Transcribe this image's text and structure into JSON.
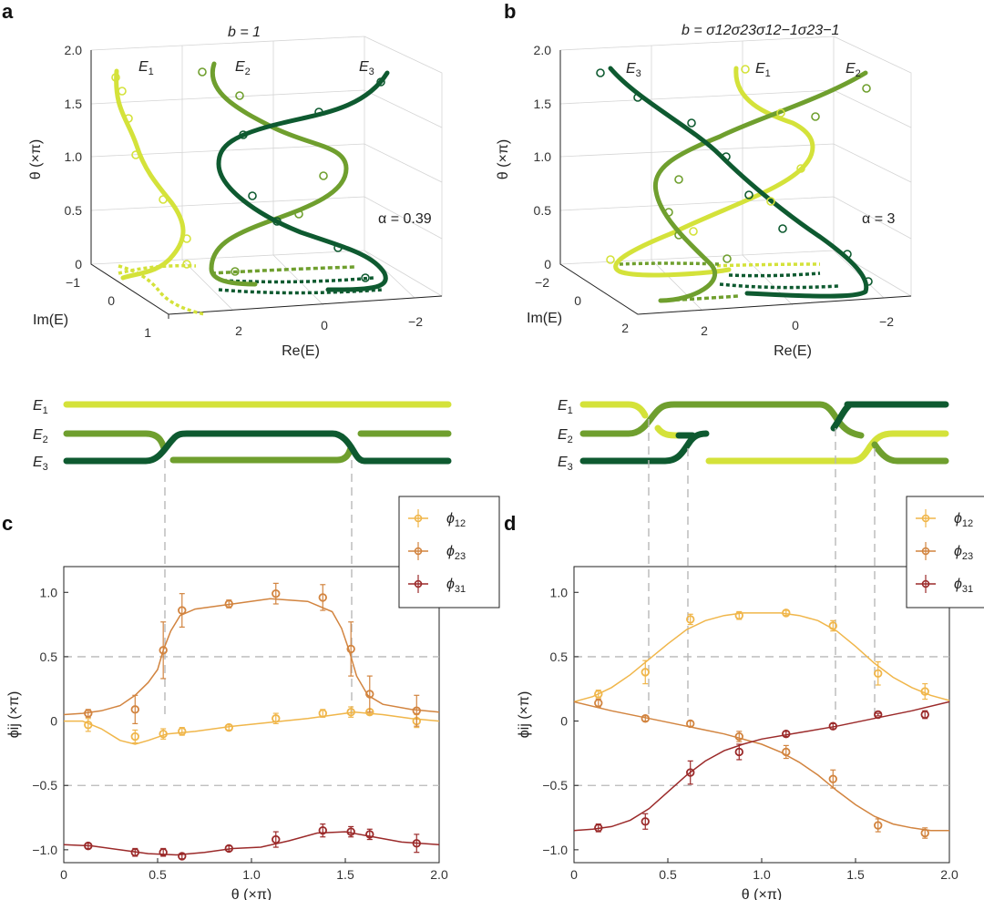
{
  "colors": {
    "E1": "#d4e23a",
    "E2": "#6f9f2e",
    "E3": "#0e5a30",
    "phi12": "#f0b64a",
    "phi23": "#d2843f",
    "phi31": "#9b2a2a"
  },
  "panels": {
    "a": {
      "letter": "a",
      "title": "b = 1",
      "alpha": "α = 0.39",
      "labels": [
        "E",
        "E",
        "E"
      ],
      "subs": [
        "1",
        "2",
        "3"
      ]
    },
    "b": {
      "letter": "b",
      "title_prefix": "b = ",
      "title_braid": "σ12σ23σ12−1σ23−1",
      "alpha": "α = 3",
      "labels": [
        "E",
        "E",
        "E"
      ],
      "subs": [
        "3",
        "1",
        "2"
      ]
    },
    "c": {
      "letter": "c"
    },
    "d": {
      "letter": "d"
    }
  },
  "axes3d": {
    "theta_label": "θ (×π)",
    "im_label": "Im(E)",
    "re_label": "Re(E)",
    "theta_ticks": [
      "0",
      "0.5",
      "1.0",
      "1.5",
      "2.0"
    ],
    "re_ticks": [
      "2",
      "0",
      "−2"
    ],
    "im_ticks_a": [
      "−1",
      "0",
      "1"
    ],
    "im_ticks_b": [
      "−2",
      "0",
      "2"
    ]
  },
  "braid_labels": {
    "E": "E",
    "subs": [
      "1",
      "2",
      "3"
    ]
  },
  "legend": {
    "items": [
      {
        "name": "ϕ",
        "sub": "12",
        "color": "#f0b64a"
      },
      {
        "name": "ϕ",
        "sub": "23",
        "color": "#d2843f"
      },
      {
        "name": "ϕ",
        "sub": "31",
        "color": "#9b2a2a"
      }
    ]
  },
  "chart_data": [
    {
      "panel": "c",
      "type": "line",
      "xlabel": "θ (×π)",
      "ylabel": "ϕij (×π)",
      "xlim": [
        0,
        2.0
      ],
      "ylim": [
        -1.1,
        1.2
      ],
      "xticks": [
        0,
        0.5,
        1.0,
        1.5,
        2.0
      ],
      "xtick_labels": [
        "0",
        "0.5",
        "1.0",
        "1.5",
        "2.0"
      ],
      "yticks": [
        -1.0,
        -0.5,
        0,
        0.5,
        1.0
      ],
      "ytick_labels": [
        "−1.0",
        "−0.5",
        "0",
        "0.5",
        "1.0"
      ],
      "hlines": [
        0.5,
        -0.5
      ],
      "series": [
        {
          "name": "ϕ12",
          "color": "#f0b64a",
          "curve_x": [
            0,
            0.1,
            0.2,
            0.3,
            0.38,
            0.45,
            0.55,
            0.7,
            0.9,
            1.1,
            1.3,
            1.45,
            1.55,
            1.7,
            1.85,
            2.0
          ],
          "curve_y": [
            0.0,
            0.0,
            -0.06,
            -0.15,
            -0.18,
            -0.15,
            -0.1,
            -0.08,
            -0.04,
            -0.01,
            0.02,
            0.05,
            0.07,
            0.05,
            0.02,
            0.0
          ],
          "points_x": [
            0.13,
            0.38,
            0.53,
            0.63,
            0.88,
            1.13,
            1.38,
            1.53,
            1.63,
            1.88
          ],
          "points_y": [
            -0.03,
            -0.12,
            -0.1,
            -0.08,
            -0.05,
            0.02,
            0.06,
            0.07,
            0.07,
            0.0
          ],
          "err": [
            0.05,
            0.05,
            0.04,
            0.03,
            0.02,
            0.04,
            0.03,
            0.04,
            0.02,
            0.05
          ]
        },
        {
          "name": "ϕ23",
          "color": "#d2843f",
          "curve_x": [
            0,
            0.1,
            0.2,
            0.3,
            0.38,
            0.45,
            0.5,
            0.53,
            0.57,
            0.62,
            0.7,
            0.9,
            1.1,
            1.3,
            1.43,
            1.48,
            1.52,
            1.56,
            1.62,
            1.7,
            1.85,
            2.0
          ],
          "curve_y": [
            0.05,
            0.06,
            0.08,
            0.12,
            0.2,
            0.3,
            0.4,
            0.55,
            0.7,
            0.82,
            0.87,
            0.91,
            0.95,
            0.93,
            0.85,
            0.72,
            0.55,
            0.35,
            0.2,
            0.13,
            0.09,
            0.07
          ],
          "points_x": [
            0.13,
            0.38,
            0.53,
            0.63,
            0.88,
            1.13,
            1.38,
            1.53,
            1.63,
            1.88
          ],
          "points_y": [
            0.06,
            0.09,
            0.55,
            0.86,
            0.91,
            0.99,
            0.96,
            0.56,
            0.21,
            0.08
          ],
          "err": [
            0.03,
            0.11,
            0.22,
            0.13,
            0.03,
            0.08,
            0.1,
            0.21,
            0.14,
            0.12
          ]
        },
        {
          "name": "ϕ31",
          "color": "#9b2a2a",
          "curve_x": [
            0,
            0.15,
            0.3,
            0.45,
            0.6,
            0.75,
            0.9,
            1.05,
            1.2,
            1.35,
            1.5,
            1.65,
            1.8,
            2.0
          ],
          "curve_y": [
            -0.96,
            -0.97,
            -1.0,
            -1.03,
            -1.04,
            -1.02,
            -0.99,
            -0.98,
            -0.93,
            -0.87,
            -0.86,
            -0.9,
            -0.94,
            -0.96
          ],
          "points_x": [
            0.13,
            0.38,
            0.53,
            0.63,
            0.88,
            1.13,
            1.38,
            1.53,
            1.63,
            1.88
          ],
          "points_y": [
            -0.97,
            -1.02,
            -1.02,
            -1.05,
            -0.99,
            -0.92,
            -0.85,
            -0.86,
            -0.88,
            -0.95
          ],
          "err": [
            0.02,
            0.03,
            0.03,
            0.02,
            0.02,
            0.06,
            0.05,
            0.04,
            0.04,
            0.07
          ]
        }
      ]
    },
    {
      "panel": "d",
      "type": "line",
      "xlabel": "θ (×π)",
      "ylabel": "ϕij (×π)",
      "xlim": [
        0,
        2.0
      ],
      "ylim": [
        -1.1,
        1.2
      ],
      "xticks": [
        0,
        0.5,
        1.0,
        1.5,
        2.0
      ],
      "xtick_labels": [
        "0",
        "0.5",
        "1.0",
        "1.5",
        "2.0"
      ],
      "yticks": [
        -1.0,
        -0.5,
        0,
        0.5,
        1.0
      ],
      "ytick_labels": [
        "−1.0",
        "−0.5",
        "0",
        "0.5",
        "1.0"
      ],
      "hlines": [
        0.5,
        -0.5
      ],
      "series": [
        {
          "name": "ϕ12",
          "color": "#f0b64a",
          "curve_x": [
            0,
            0.1,
            0.2,
            0.3,
            0.4,
            0.5,
            0.6,
            0.7,
            0.8,
            0.9,
            1.0,
            1.1,
            1.2,
            1.3,
            1.4,
            1.5,
            1.6,
            1.7,
            1.8,
            1.9,
            2.0
          ],
          "curve_y": [
            0.15,
            0.19,
            0.26,
            0.36,
            0.48,
            0.6,
            0.71,
            0.78,
            0.82,
            0.84,
            0.84,
            0.84,
            0.82,
            0.78,
            0.7,
            0.58,
            0.45,
            0.34,
            0.26,
            0.2,
            0.16
          ],
          "points_x": [
            0.13,
            0.38,
            0.62,
            0.88,
            1.13,
            1.38,
            1.62,
            1.87
          ],
          "points_y": [
            0.21,
            0.38,
            0.79,
            0.82,
            0.84,
            0.74,
            0.37,
            0.23
          ],
          "err": [
            0.03,
            0.09,
            0.04,
            0.03,
            0.02,
            0.04,
            0.09,
            0.06
          ]
        },
        {
          "name": "ϕ23",
          "color": "#d2843f",
          "curve_x": [
            0,
            0.2,
            0.4,
            0.6,
            0.8,
            1.0,
            1.1,
            1.2,
            1.3,
            1.4,
            1.5,
            1.6,
            1.7,
            1.8,
            1.9,
            2.0
          ],
          "curve_y": [
            0.15,
            0.08,
            0.02,
            -0.04,
            -0.1,
            -0.18,
            -0.24,
            -0.32,
            -0.42,
            -0.54,
            -0.65,
            -0.74,
            -0.8,
            -0.83,
            -0.85,
            -0.85
          ],
          "points_x": [
            0.13,
            0.38,
            0.62,
            0.88,
            1.13,
            1.38,
            1.62,
            1.87
          ],
          "points_y": [
            0.14,
            0.02,
            -0.02,
            -0.12,
            -0.24,
            -0.45,
            -0.81,
            -0.87
          ],
          "err": [
            0.03,
            0.02,
            0.02,
            0.04,
            0.05,
            0.07,
            0.05,
            0.04
          ]
        },
        {
          "name": "ϕ31",
          "color": "#9b2a2a",
          "curve_x": [
            0,
            0.1,
            0.2,
            0.3,
            0.4,
            0.5,
            0.6,
            0.7,
            0.8,
            0.9,
            1.0,
            1.2,
            1.4,
            1.6,
            1.8,
            2.0
          ],
          "curve_y": [
            -0.85,
            -0.84,
            -0.82,
            -0.77,
            -0.68,
            -0.55,
            -0.42,
            -0.31,
            -0.23,
            -0.18,
            -0.14,
            -0.09,
            -0.04,
            0.02,
            0.08,
            0.15
          ],
          "points_x": [
            0.13,
            0.38,
            0.62,
            0.88,
            1.13,
            1.38,
            1.62,
            1.87
          ],
          "points_y": [
            -0.83,
            -0.78,
            -0.4,
            -0.24,
            -0.1,
            -0.04,
            0.05,
            0.05
          ],
          "err": [
            0.03,
            0.06,
            0.09,
            0.06,
            0.02,
            0.02,
            0.01,
            0.03
          ]
        }
      ]
    }
  ]
}
